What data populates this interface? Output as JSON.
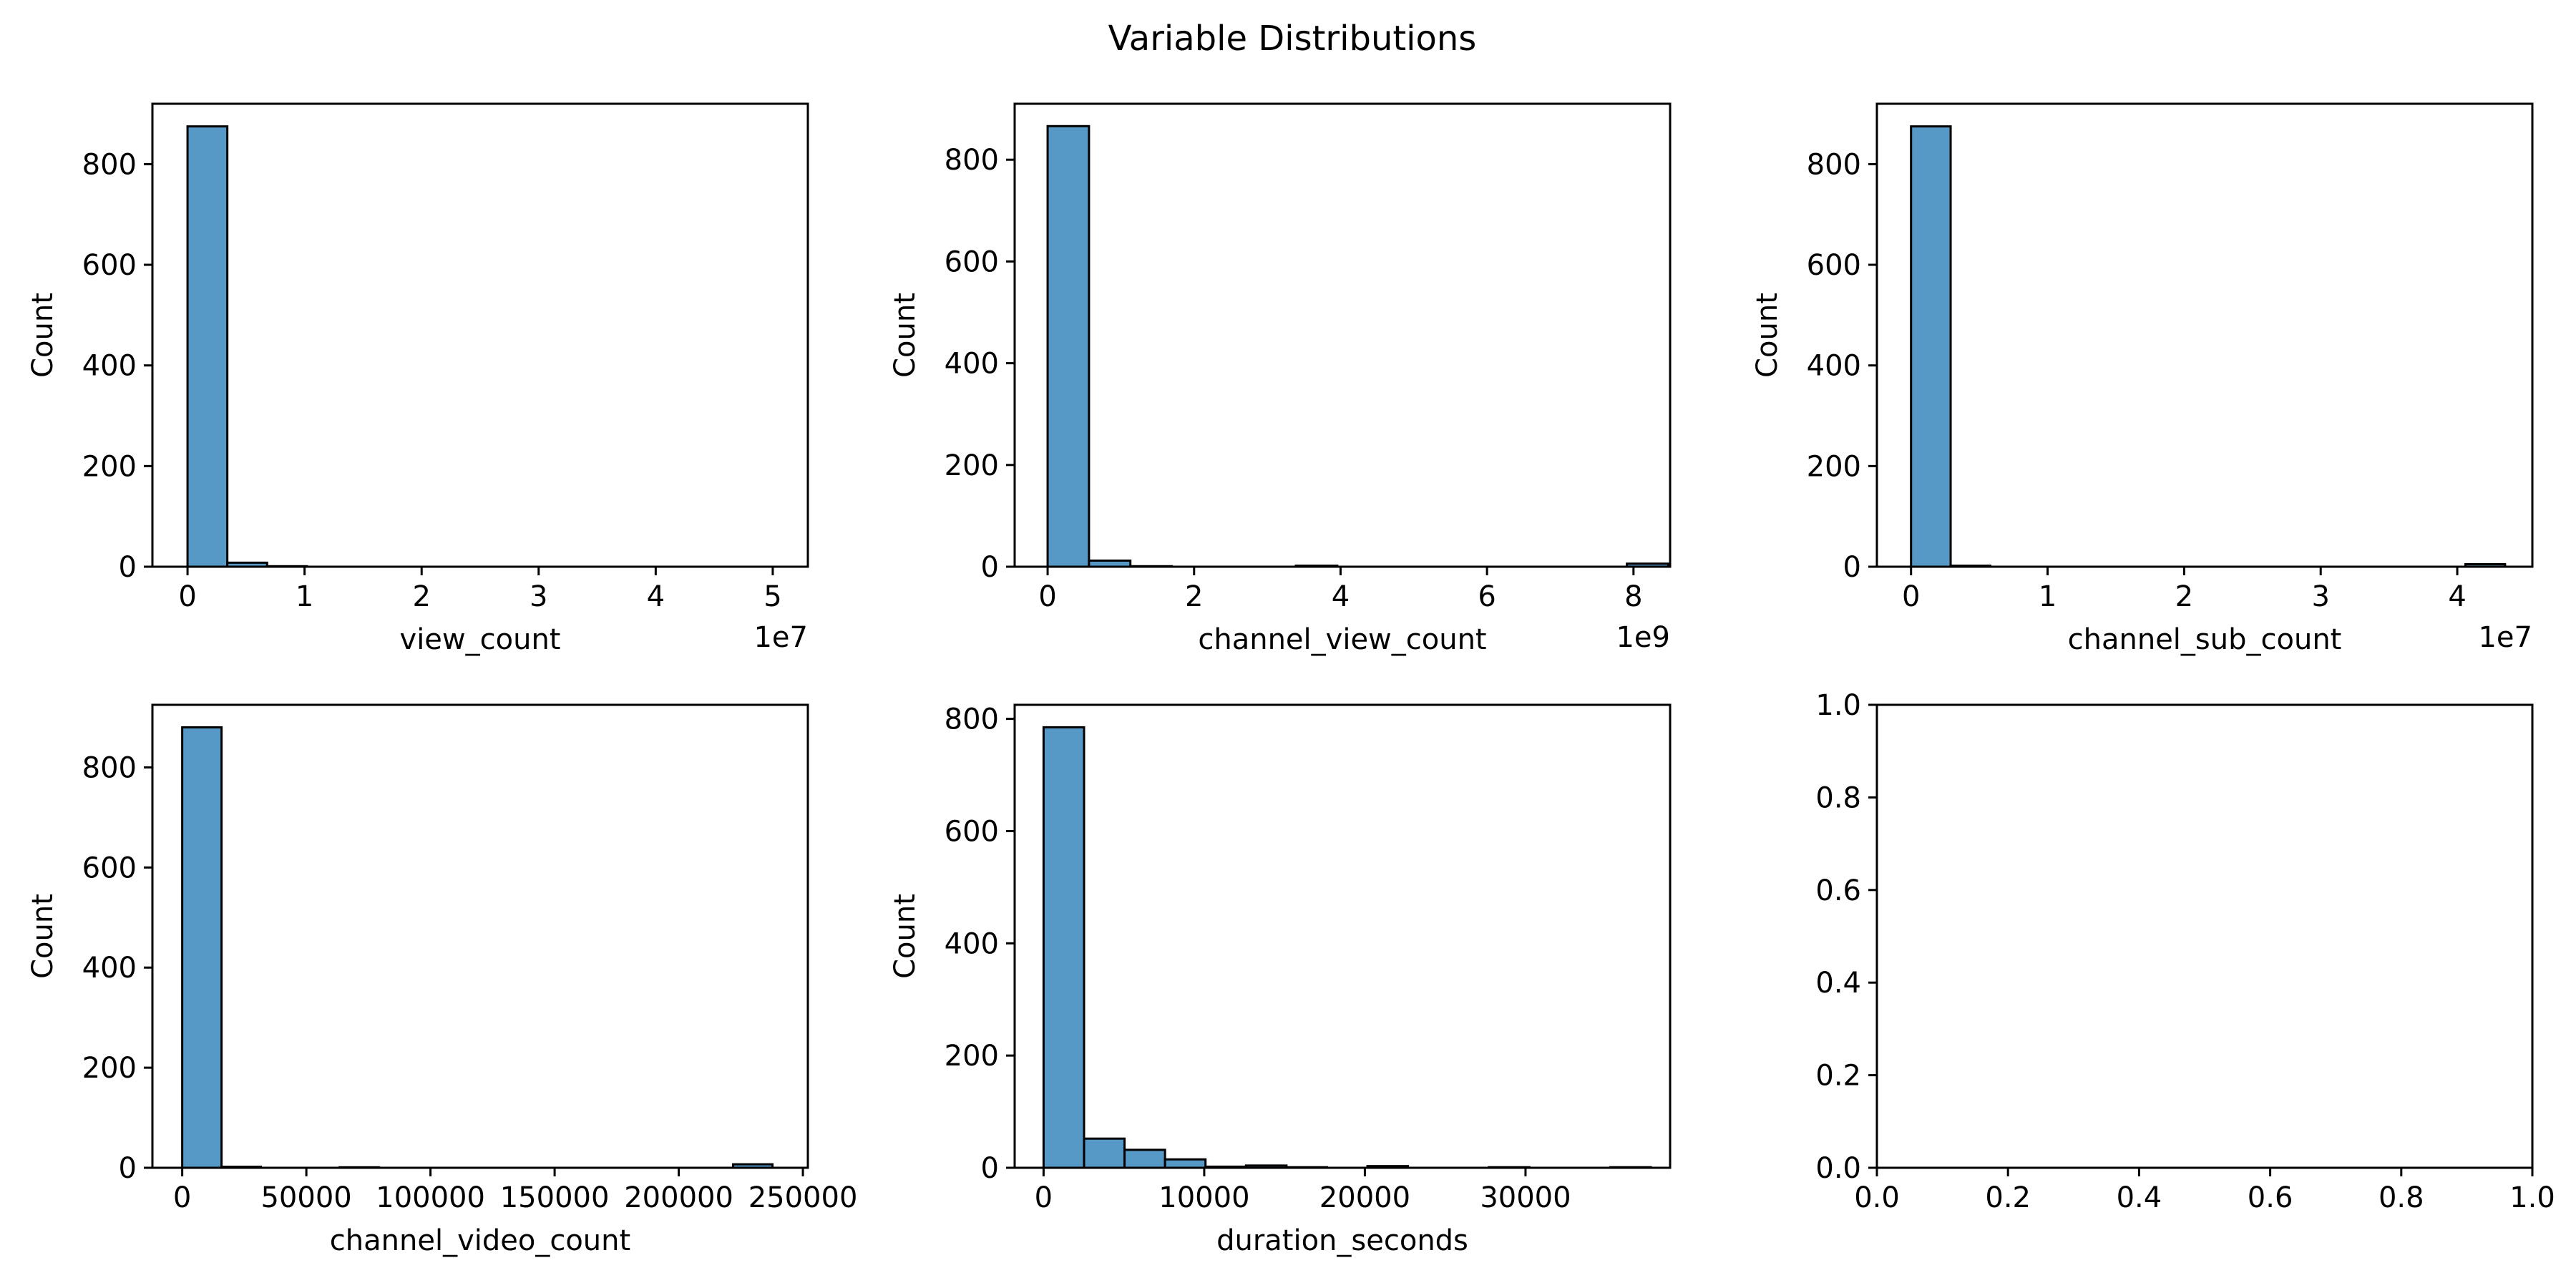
{
  "colors": {
    "bar_fill": "#5699c6",
    "bar_edge": "#000000",
    "axis": "#000000",
    "background": "#ffffff"
  },
  "chart_data": {
    "suptitle": "Variable Distributions",
    "panels": [
      {
        "type": "bar",
        "xlabel": "view_count",
        "ylabel": "Count",
        "offset_text": "1e7",
        "xlim": [
          -0.3,
          5.3
        ],
        "ylim": [
          0,
          920
        ],
        "xticks": [
          0,
          1,
          2,
          3,
          4,
          5
        ],
        "xtick_labels": [
          "0",
          "1",
          "2",
          "3",
          "4",
          "5"
        ],
        "yticks": [
          0,
          200,
          400,
          600,
          800
        ],
        "ytick_labels": [
          "0",
          "200",
          "400",
          "600",
          "800"
        ],
        "bin_start": 0,
        "bin_width": 0.34,
        "counts": [
          875,
          8,
          1,
          0,
          0,
          0,
          0,
          0,
          0,
          0,
          0,
          0,
          0,
          0,
          0
        ]
      },
      {
        "type": "bar",
        "xlabel": "channel_view_count",
        "ylabel": "Count",
        "offset_text": "1e9",
        "xlim": [
          -0.45,
          8.5
        ],
        "ylim": [
          0,
          910
        ],
        "xticks": [
          0,
          2,
          4,
          6,
          8
        ],
        "xtick_labels": [
          "0",
          "2",
          "4",
          "6",
          "8"
        ],
        "yticks": [
          0,
          200,
          400,
          600,
          800
        ],
        "ytick_labels": [
          "0",
          "200",
          "400",
          "600",
          "800"
        ],
        "bin_start": 0,
        "bin_width": 0.565,
        "counts": [
          866,
          12,
          1,
          0,
          0,
          0,
          2,
          0,
          0,
          0,
          0,
          0,
          0,
          0,
          6
        ]
      },
      {
        "type": "bar",
        "xlabel": "channel_sub_count",
        "ylabel": "Count",
        "offset_text": "1e7",
        "xlim": [
          -0.25,
          4.55
        ],
        "ylim": [
          0,
          920
        ],
        "xticks": [
          0,
          1,
          2,
          3,
          4
        ],
        "xtick_labels": [
          "0",
          "1",
          "2",
          "3",
          "4"
        ],
        "yticks": [
          0,
          200,
          400,
          600,
          800
        ],
        "ytick_labels": [
          "0",
          "200",
          "400",
          "600",
          "800"
        ],
        "bin_start": 0,
        "bin_width": 0.29,
        "counts": [
          875,
          2,
          0,
          0,
          0,
          0,
          0,
          0,
          0,
          0,
          0,
          0,
          0,
          0,
          5
        ]
      },
      {
        "type": "bar",
        "xlabel": "channel_video_count",
        "ylabel": "Count",
        "offset_text": "",
        "xlim": [
          -12000,
          252000
        ],
        "ylim": [
          0,
          925
        ],
        "xticks": [
          0,
          50000,
          100000,
          150000,
          200000,
          250000
        ],
        "xtick_labels": [
          "0",
          "50000",
          "100000",
          "150000",
          "200000",
          "250000"
        ],
        "yticks": [
          0,
          200,
          400,
          600,
          800
        ],
        "ytick_labels": [
          "0",
          "200",
          "400",
          "600",
          "800"
        ],
        "bin_start": 0,
        "bin_width": 15850,
        "counts": [
          880,
          2,
          0,
          0,
          1,
          0,
          0,
          0,
          0,
          0,
          0,
          0,
          0,
          0,
          7
        ]
      },
      {
        "type": "bar",
        "xlabel": "duration_seconds",
        "ylabel": "Count",
        "offset_text": "",
        "xlim": [
          -1800,
          39000
        ],
        "ylim": [
          0,
          825
        ],
        "xticks": [
          0,
          10000,
          20000,
          30000
        ],
        "xtick_labels": [
          "0",
          "10000",
          "20000",
          "30000"
        ],
        "yticks": [
          0,
          200,
          400,
          600,
          800
        ],
        "ytick_labels": [
          "0",
          "200",
          "400",
          "600",
          "800"
        ],
        "bin_start": 0,
        "bin_width": 2520,
        "counts": [
          785,
          52,
          32,
          15,
          2,
          4,
          1,
          0,
          3,
          0,
          0,
          1,
          0,
          0,
          1
        ]
      },
      {
        "type": "bar",
        "xlabel": "",
        "ylabel": "",
        "offset_text": "",
        "xlim": [
          0,
          1
        ],
        "ylim": [
          0,
          1
        ],
        "xticks": [
          0,
          0.2,
          0.4,
          0.6,
          0.8,
          1.0
        ],
        "xtick_labels": [
          "0.0",
          "0.2",
          "0.4",
          "0.6",
          "0.8",
          "1.0"
        ],
        "yticks": [
          0,
          0.2,
          0.4,
          0.6,
          0.8,
          1.0
        ],
        "ytick_labels": [
          "0.0",
          "0.2",
          "0.4",
          "0.6",
          "0.8",
          "1.0"
        ],
        "bin_start": 0,
        "bin_width": 0,
        "counts": []
      }
    ]
  }
}
